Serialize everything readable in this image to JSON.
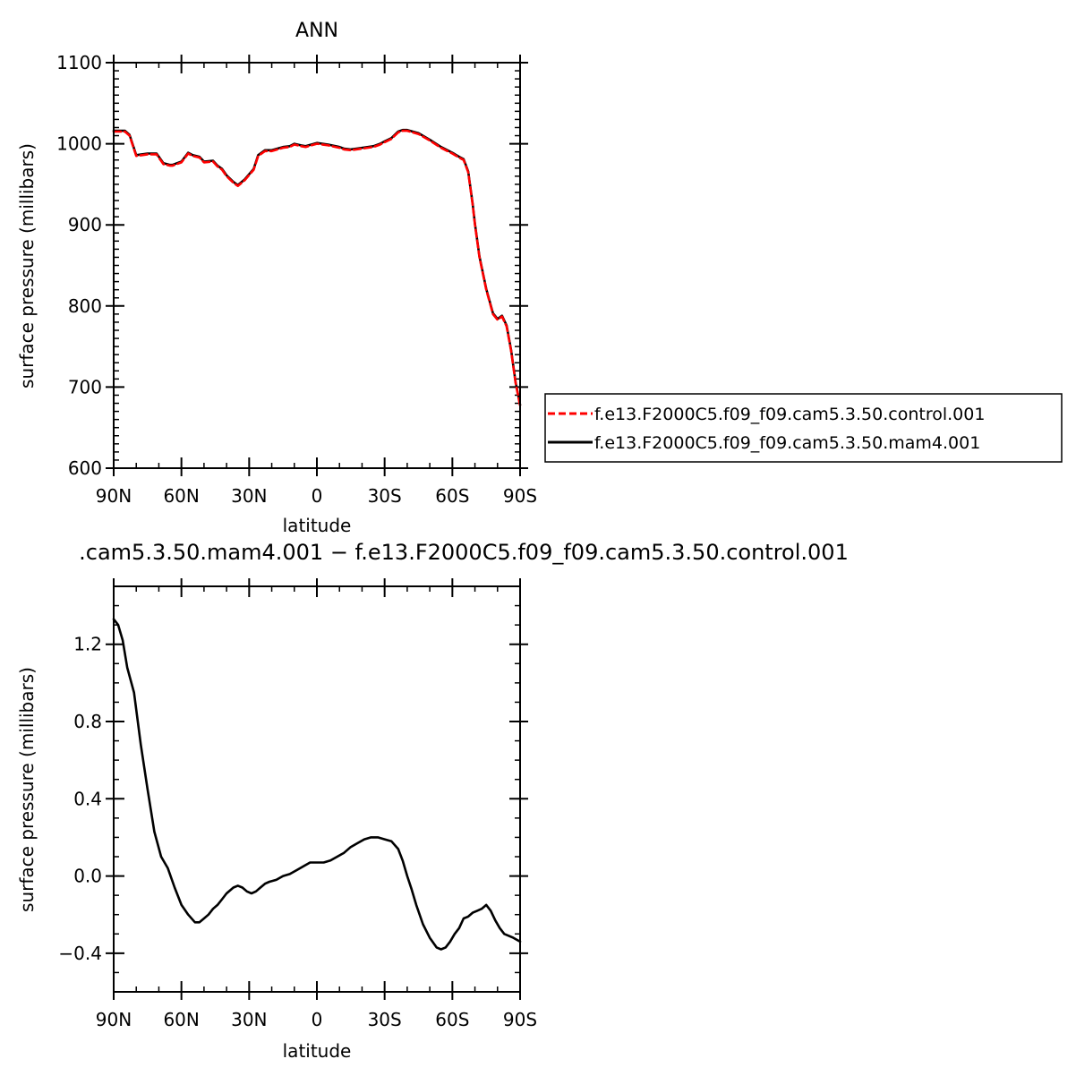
{
  "chart_data": [
    {
      "type": "line",
      "title": "ANN",
      "xlabel": "latitude",
      "ylabel": "surface pressure (millibars)",
      "xlim": [
        90,
        -90
      ],
      "ylim": [
        600,
        1100
      ],
      "xticks": [
        90,
        60,
        30,
        0,
        -30,
        -60,
        -90
      ],
      "xtick_labels": [
        "90N",
        "60N",
        "30N",
        "0",
        "30S",
        "60S",
        "90S"
      ],
      "yticks": [
        600,
        700,
        800,
        900,
        1000,
        1100
      ],
      "ytick_labels": [
        "600",
        "700",
        "800",
        "900",
        "1000",
        "1100"
      ],
      "legend_position": "right",
      "series": [
        {
          "name": "f.e13.F2000C5.f09_f09.cam5.3.50.control.001",
          "color": "#ff0000",
          "dash": "dashed",
          "x": [
            90,
            85,
            83,
            80,
            75,
            71,
            68,
            65,
            64,
            60,
            57,
            55,
            52,
            50,
            46,
            44,
            42,
            40,
            37,
            35,
            32,
            28,
            26,
            23,
            20,
            15,
            12,
            10,
            7,
            5,
            0,
            -5,
            -10,
            -12,
            -15,
            -20,
            -25,
            -28,
            -30,
            -33,
            -36,
            -38,
            -40,
            -45,
            -50,
            -55,
            -60,
            -63,
            -65,
            -67,
            -69,
            -70,
            -72,
            -75,
            -78,
            -80,
            -82,
            -84,
            -86,
            -88,
            -90
          ],
          "y": [
            1015,
            1015,
            1010,
            985,
            987,
            987,
            975,
            973,
            973,
            977,
            988,
            985,
            983,
            977,
            978,
            972,
            968,
            960,
            952,
            948,
            955,
            968,
            985,
            991,
            991,
            995,
            996,
            999,
            997,
            996,
            1000,
            998,
            995,
            993,
            992,
            994,
            996,
            999,
            1002,
            1006,
            1014,
            1016,
            1016,
            1012,
            1004,
            995,
            988,
            983,
            980,
            965,
            925,
            900,
            860,
            820,
            790,
            783,
            787,
            775,
            745,
            705,
            677
          ]
        },
        {
          "name": "f.e13.F2000C5.f09_f09.cam5.3.50.mam4.001",
          "color": "#000000",
          "dash": "solid",
          "x": [
            90,
            85,
            83,
            80,
            75,
            71,
            68,
            65,
            64,
            60,
            57,
            55,
            52,
            50,
            46,
            44,
            42,
            40,
            37,
            35,
            32,
            28,
            26,
            23,
            20,
            15,
            12,
            10,
            7,
            5,
            0,
            -5,
            -10,
            -12,
            -15,
            -20,
            -25,
            -28,
            -30,
            -33,
            -36,
            -38,
            -40,
            -45,
            -50,
            -55,
            -60,
            -63,
            -65,
            -67,
            -69,
            -70,
            -72,
            -75,
            -78,
            -80,
            -82,
            -84,
            -86,
            -88,
            -90
          ],
          "y": [
            1016,
            1016,
            1011,
            986,
            988,
            988,
            976,
            974,
            974,
            978,
            989,
            986,
            984,
            978,
            979,
            973,
            969,
            961,
            953,
            949,
            956,
            969,
            986,
            992,
            992,
            996,
            997,
            1000,
            998,
            997,
            1001,
            999,
            996,
            994,
            993,
            995,
            997,
            1000,
            1003,
            1007,
            1015,
            1017,
            1017,
            1013,
            1005,
            996,
            989,
            984,
            981,
            966,
            926,
            901,
            861,
            821,
            791,
            784,
            788,
            776,
            746,
            706,
            678
          ]
        }
      ]
    },
    {
      "type": "line",
      "title": ".cam5.3.50.mam4.001 − f.e13.F2000C5.f09_f09.cam5.3.50.control.001",
      "xlabel": "latitude",
      "ylabel": "surface pressure (millibars)",
      "xlim": [
        90,
        -90
      ],
      "ylim": [
        -0.6,
        1.5
      ],
      "xticks": [
        90,
        60,
        30,
        0,
        -30,
        -60,
        -90
      ],
      "xtick_labels": [
        "90N",
        "60N",
        "30N",
        "0",
        "30S",
        "60S",
        "90S"
      ],
      "yticks": [
        -0.4,
        0.0,
        0.4,
        0.8,
        1.2
      ],
      "ytick_labels": [
        "−0.4",
        "0.0",
        "0.4",
        "0.8",
        "1.2"
      ],
      "series": [
        {
          "color": "#000000",
          "dash": "solid",
          "x": [
            90,
            88,
            86,
            84,
            81,
            78,
            75,
            72,
            69,
            66,
            63,
            60,
            57,
            54,
            52,
            50,
            48,
            46,
            44,
            42,
            40,
            37,
            35,
            33,
            31,
            29,
            27,
            25,
            23,
            21,
            18,
            15,
            12,
            9,
            6,
            3,
            0,
            -3,
            -6,
            -9,
            -12,
            -15,
            -18,
            -21,
            -24,
            -27,
            -30,
            -33,
            -36,
            -38,
            -40,
            -42,
            -44,
            -47,
            -50,
            -53,
            -55,
            -57,
            -59,
            -61,
            -63,
            -65,
            -67,
            -69,
            -71,
            -73,
            -75,
            -77,
            -79,
            -81,
            -83,
            -85,
            -87,
            -90
          ],
          "y": [
            1.33,
            1.3,
            1.22,
            1.08,
            0.95,
            0.68,
            0.45,
            0.23,
            0.1,
            0.04,
            -0.06,
            -0.15,
            -0.2,
            -0.24,
            -0.24,
            -0.22,
            -0.2,
            -0.17,
            -0.15,
            -0.12,
            -0.09,
            -0.06,
            -0.05,
            -0.06,
            -0.08,
            -0.09,
            -0.08,
            -0.06,
            -0.04,
            -0.03,
            -0.02,
            0.0,
            0.01,
            0.03,
            0.05,
            0.07,
            0.07,
            0.07,
            0.08,
            0.1,
            0.12,
            0.15,
            0.17,
            0.19,
            0.2,
            0.2,
            0.19,
            0.18,
            0.14,
            0.08,
            0.0,
            -0.07,
            -0.15,
            -0.25,
            -0.32,
            -0.37,
            -0.38,
            -0.37,
            -0.34,
            -0.3,
            -0.27,
            -0.22,
            -0.21,
            -0.19,
            -0.18,
            -0.17,
            -0.15,
            -0.18,
            -0.23,
            -0.27,
            -0.3,
            -0.31,
            -0.32,
            -0.34
          ]
        }
      ]
    }
  ]
}
